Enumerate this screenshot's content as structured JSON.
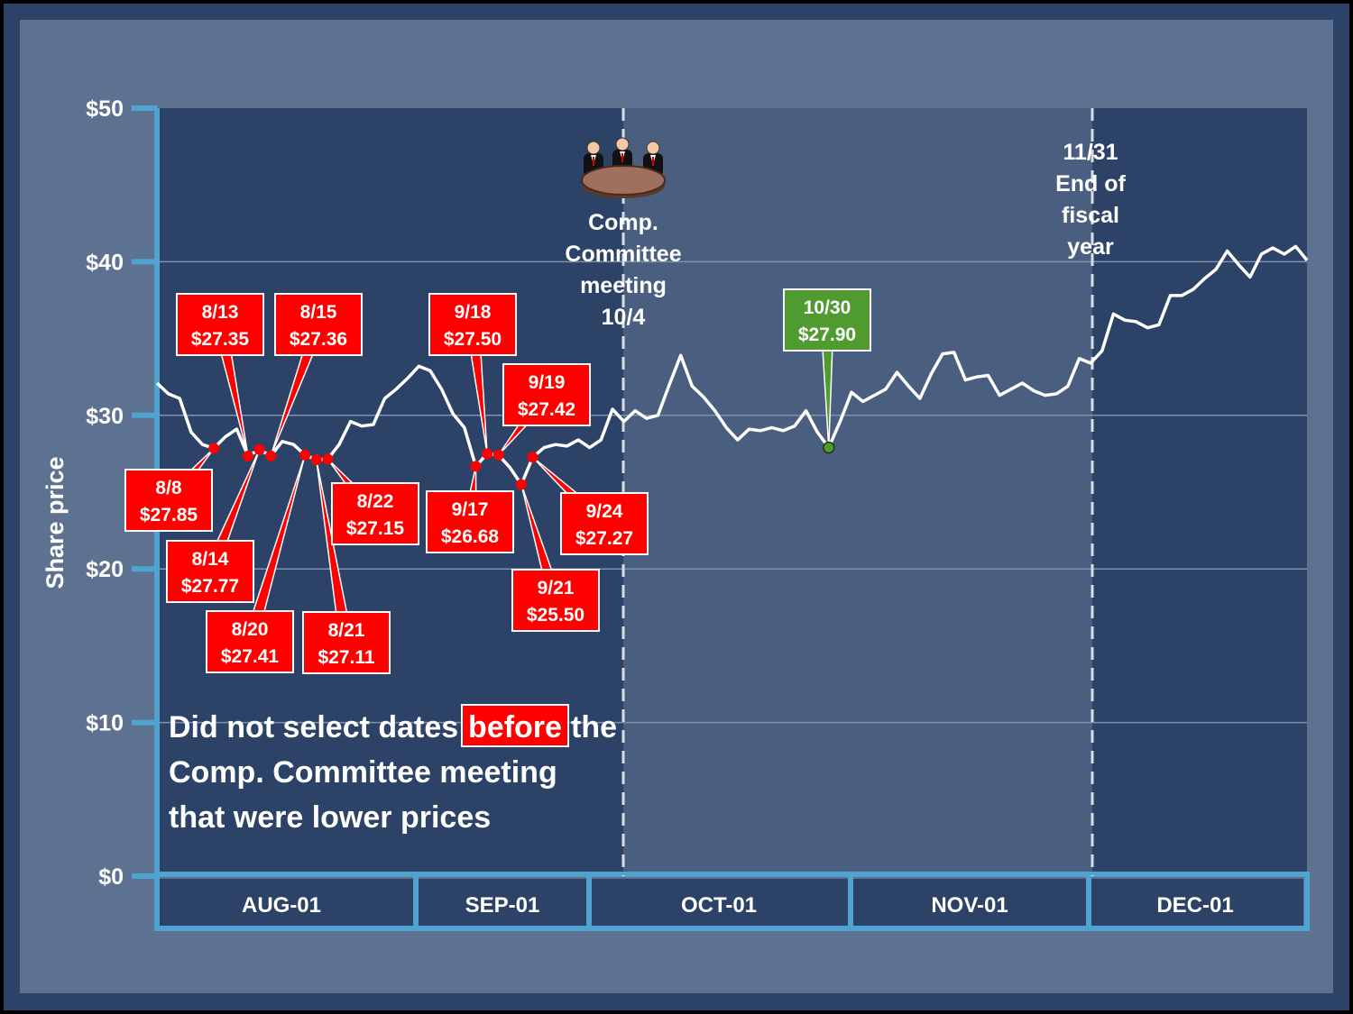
{
  "chart_data": {
    "type": "line",
    "ylabel": "Share price",
    "xlabel": "",
    "ylim": [
      0,
      50
    ],
    "yticks": [
      "$0",
      "$10",
      "$20",
      "$30",
      "$40",
      "$50"
    ],
    "months": [
      "AUG-01",
      "SEP-01",
      "OCT-01",
      "NOV-01",
      "DEC-01"
    ],
    "grid": true,
    "series": [
      {
        "values": [
          32.1,
          31.4,
          31.1,
          28.9,
          28.1,
          27.85,
          28.6,
          29.1,
          27.35,
          27.77,
          27.36,
          28.3,
          28.1,
          27.41,
          27.11,
          27.15,
          28.1,
          29.6,
          29.3,
          29.4,
          31.1,
          31.7,
          32.4,
          33.2,
          32.9,
          31.7,
          30.1,
          29.2,
          26.68,
          27.5,
          27.42,
          26.6,
          25.5,
          27.27,
          27.9,
          28.1,
          28.0,
          28.4,
          27.9,
          28.4,
          30.4,
          29.6,
          30.3,
          29.8,
          30.0,
          32.0,
          33.9,
          31.9,
          31.2,
          30.3,
          29.2,
          28.4,
          29.1,
          29.0,
          29.2,
          29.0,
          29.3,
          30.3,
          28.9,
          27.9,
          29.6,
          31.5,
          30.9,
          31.3,
          31.7,
          32.8,
          31.9,
          31.1,
          32.7,
          34.0,
          34.1,
          32.3,
          32.5,
          32.6,
          31.3,
          31.7,
          32.1,
          31.6,
          31.3,
          31.4,
          31.9,
          33.7,
          33.4,
          34.2,
          36.6,
          36.2,
          36.1,
          35.7,
          35.9,
          37.8,
          37.8,
          38.2,
          38.9,
          39.5,
          40.7,
          39.8,
          39.0,
          40.5,
          40.9,
          40.5,
          41.0,
          40.1
        ]
      }
    ],
    "highlighted_points": [
      {
        "date": "8/8",
        "price": "$27.85",
        "idx": 5,
        "value": 27.85
      },
      {
        "date": "8/13",
        "price": "$27.35",
        "idx": 8,
        "value": 27.35
      },
      {
        "date": "8/14",
        "price": "$27.77",
        "idx": 9,
        "value": 27.77
      },
      {
        "date": "8/15",
        "price": "$27.36",
        "idx": 10,
        "value": 27.36
      },
      {
        "date": "8/20",
        "price": "$27.41",
        "idx": 13,
        "value": 27.41
      },
      {
        "date": "8/21",
        "price": "$27.11",
        "idx": 14,
        "value": 27.11
      },
      {
        "date": "8/22",
        "price": "$27.15",
        "idx": 15,
        "value": 27.15
      },
      {
        "date": "9/17",
        "price": "$26.68",
        "idx": 28,
        "value": 26.68
      },
      {
        "date": "9/18",
        "price": "$27.50",
        "idx": 29,
        "value": 27.5
      },
      {
        "date": "9/19",
        "price": "$27.42",
        "idx": 30,
        "value": 27.42
      },
      {
        "date": "9/21",
        "price": "$25.50",
        "idx": 32,
        "value": 25.5
      },
      {
        "date": "9/24",
        "price": "$27.27",
        "idx": 33,
        "value": 27.27
      },
      {
        "date": "10/30",
        "price": "$27.90",
        "idx": 59,
        "value": 27.9
      }
    ],
    "annotations": {
      "meeting": [
        "Comp.",
        "Committee",
        "meeting",
        "10/4"
      ],
      "fiscal": [
        "11/31",
        "End of",
        "fiscal",
        "year"
      ],
      "message": {
        "line1_pre": "Did not select dates",
        "line1_highlight": "before",
        "line1_post": "the",
        "line2": "Comp. Committee meeting",
        "line3": "that were lower prices"
      }
    },
    "colors": {
      "line": "#ffffff",
      "selected": "#ff0000",
      "nonselected": "#4f9b2f",
      "axis": "#4fa3d1",
      "panel_dark": "#2c4266",
      "panel_light": "#4a5f80",
      "frame": "#5d7290"
    }
  }
}
